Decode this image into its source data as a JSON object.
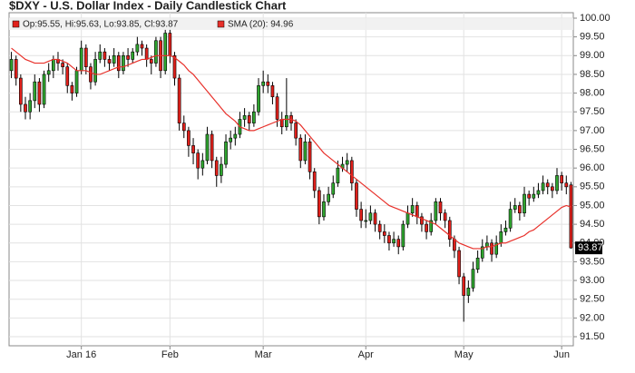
{
  "chart_data": {
    "type": "candlestick",
    "title": "$DXY - U.S. Dollar Index - Daily Candlestick Chart",
    "info": "Op:95.55, Hi:95.63, Lo:93.85, Cl:93.87",
    "categories": [
      null,
      null,
      null,
      null,
      null,
      null,
      null,
      null,
      null,
      null,
      null,
      null,
      null,
      null,
      null,
      "Jan 16",
      null,
      null,
      null,
      null,
      null,
      null,
      null,
      null,
      null,
      null,
      null,
      null,
      null,
      null,
      null,
      null,
      null,
      null,
      "Feb",
      null,
      null,
      null,
      null,
      null,
      null,
      null,
      null,
      null,
      null,
      null,
      null,
      null,
      null,
      null,
      null,
      null,
      null,
      null,
      "Mar",
      null,
      null,
      null,
      null,
      null,
      null,
      null,
      null,
      null,
      null,
      null,
      null,
      null,
      null,
      null,
      null,
      null,
      null,
      null,
      null,
      null,
      "Apr",
      null,
      null,
      null,
      null,
      null,
      null,
      null,
      null,
      null,
      null,
      null,
      null,
      null,
      null,
      null,
      null,
      null,
      null,
      null,
      null,
      "May",
      null,
      null,
      null,
      null,
      null,
      null,
      null,
      null,
      null,
      null,
      null,
      null,
      null,
      null,
      null,
      null,
      null,
      null,
      null,
      null,
      "Jun",
      null,
      null
    ],
    "open": [
      98.6,
      98.9,
      98.4,
      97.7,
      97.5,
      97.8,
      98.3,
      97.7,
      98.5,
      98.6,
      98.9,
      98.8,
      98.7,
      98.2,
      98.0,
      98.6,
      99.2,
      98.7,
      98.3,
      98.9,
      99.1,
      98.9,
      98.8,
      99.0,
      98.6,
      99.0,
      98.9,
      99.1,
      99.3,
      99.2,
      98.9,
      98.8,
      99.4,
      98.6,
      99.6,
      99.0,
      98.4,
      97.2,
      97.0,
      96.6,
      96.4,
      96.0,
      96.2,
      96.9,
      96.2,
      95.8,
      96.1,
      96.7,
      96.8,
      96.9,
      97.3,
      97.4,
      97.2,
      97.5,
      98.2,
      98.3,
      98.2,
      97.9,
      97.3,
      97.1,
      97.4,
      97.2,
      96.8,
      96.2,
      96.7,
      95.9,
      95.4,
      94.7,
      95.1,
      95.3,
      95.6,
      96.0,
      96.1,
      96.2,
      95.6,
      94.9,
      94.6,
      94.6,
      94.8,
      94.5,
      94.3,
      94.2,
      94.0,
      94.1,
      93.9,
      94.5,
      94.8,
      95.0,
      94.7,
      94.5,
      94.3,
      94.6,
      95.1,
      94.8,
      94.6,
      94.1,
      93.8,
      93.1,
      92.6,
      92.8,
      93.3,
      93.6,
      93.9,
      94.0,
      93.7,
      94.0,
      94.3,
      94.4,
      94.9,
      95.0,
      94.8,
      95.3,
      95.2,
      95.3,
      95.4,
      95.6,
      95.5,
      95.4,
      95.8,
      95.6,
      95.55
    ],
    "high": [
      99.1,
      99.0,
      98.5,
      97.9,
      98.0,
      98.5,
      98.4,
      98.6,
      98.8,
      99.0,
      99.1,
      98.9,
      98.8,
      98.3,
      98.7,
      99.4,
      99.3,
      98.8,
      99.1,
      99.3,
      99.2,
      99.0,
      99.2,
      99.1,
      99.1,
      99.2,
      99.2,
      99.5,
      99.4,
      99.3,
      99.0,
      99.5,
      99.5,
      99.7,
      99.7,
      99.1,
      98.5,
      97.4,
      97.1,
      96.8,
      96.5,
      96.4,
      97.1,
      97.0,
      96.3,
      96.3,
      96.9,
      97.0,
      97.1,
      97.5,
      97.6,
      97.5,
      97.7,
      98.4,
      98.6,
      98.5,
      98.3,
      98.0,
      97.5,
      98.4,
      97.5,
      97.3,
      96.9,
      96.9,
      96.8,
      96.0,
      95.5,
      95.3,
      95.5,
      95.8,
      96.2,
      96.3,
      96.4,
      96.3,
      95.7,
      95.1,
      94.9,
      95.0,
      94.9,
      94.6,
      94.5,
      94.3,
      94.3,
      94.2,
      94.6,
      95.0,
      95.2,
      95.1,
      94.8,
      94.6,
      94.8,
      95.2,
      95.2,
      94.9,
      94.7,
      94.2,
      93.9,
      93.2,
      93.0,
      93.5,
      93.8,
      94.1,
      94.2,
      94.1,
      94.2,
      94.5,
      94.6,
      95.1,
      95.2,
      95.1,
      95.5,
      95.4,
      95.5,
      95.6,
      95.8,
      95.7,
      95.6,
      96.0,
      95.9,
      95.8,
      95.63
    ],
    "low": [
      98.4,
      98.2,
      97.5,
      97.3,
      97.3,
      97.6,
      97.5,
      97.6,
      98.3,
      98.4,
      98.6,
      98.5,
      98.0,
      97.8,
      97.9,
      98.5,
      98.5,
      98.1,
      98.2,
      98.8,
      98.7,
      98.6,
      98.7,
      98.4,
      98.5,
      98.7,
      98.8,
      99.0,
      99.0,
      98.7,
      98.5,
      98.7,
      98.4,
      98.5,
      98.8,
      98.2,
      97.0,
      96.8,
      96.3,
      96.1,
      95.7,
      95.8,
      96.1,
      96.0,
      95.5,
      95.6,
      96.0,
      96.5,
      96.6,
      96.8,
      97.1,
      97.0,
      97.1,
      97.4,
      98.0,
      98.0,
      97.7,
      97.1,
      96.9,
      97.0,
      97.0,
      96.6,
      96.0,
      96.1,
      95.7,
      95.2,
      94.5,
      94.6,
      95.0,
      95.2,
      95.5,
      95.9,
      95.9,
      95.4,
      94.7,
      94.4,
      94.4,
      94.5,
      94.3,
      94.1,
      94.0,
      93.8,
      93.9,
      93.7,
      93.8,
      94.4,
      94.7,
      94.5,
      94.3,
      94.1,
      94.2,
      94.5,
      94.6,
      94.4,
      93.9,
      93.6,
      92.9,
      91.9,
      92.4,
      92.7,
      93.2,
      93.5,
      93.8,
      93.5,
      93.6,
      93.9,
      94.2,
      94.3,
      94.8,
      94.6,
      94.7,
      95.0,
      95.1,
      95.2,
      95.3,
      95.3,
      95.2,
      95.3,
      95.4,
      95.3,
      93.85
    ],
    "close": [
      98.9,
      98.4,
      97.7,
      97.5,
      97.8,
      98.3,
      97.7,
      98.5,
      98.6,
      98.9,
      98.8,
      98.7,
      98.2,
      98.0,
      98.6,
      99.2,
      98.7,
      98.3,
      98.9,
      99.1,
      98.9,
      98.8,
      99.0,
      98.6,
      99.0,
      98.9,
      99.1,
      99.3,
      99.2,
      98.9,
      98.8,
      99.4,
      98.6,
      99.6,
      99.0,
      98.4,
      97.2,
      97.0,
      96.6,
      96.4,
      96.0,
      96.2,
      96.9,
      96.2,
      95.8,
      96.1,
      96.7,
      96.8,
      96.9,
      97.3,
      97.4,
      97.2,
      97.5,
      98.2,
      98.3,
      98.2,
      97.9,
      97.3,
      97.1,
      97.4,
      97.2,
      96.8,
      96.2,
      96.7,
      95.9,
      95.4,
      94.7,
      95.1,
      95.3,
      95.6,
      96.0,
      96.1,
      96.2,
      95.6,
      94.9,
      94.6,
      94.6,
      94.8,
      94.5,
      94.3,
      94.2,
      94.0,
      94.1,
      93.9,
      94.5,
      94.8,
      95.0,
      94.7,
      94.5,
      94.3,
      94.6,
      95.1,
      94.8,
      94.6,
      94.1,
      93.8,
      93.1,
      92.6,
      92.8,
      93.3,
      93.6,
      93.9,
      94.0,
      93.7,
      94.0,
      94.3,
      94.4,
      94.9,
      95.0,
      94.8,
      95.3,
      95.2,
      95.3,
      95.4,
      95.6,
      95.5,
      95.4,
      95.8,
      95.6,
      95.5,
      93.87
    ],
    "sma": {
      "name": "SMA (20): 94.96",
      "color": "#e8302a",
      "values": [
        99.2,
        99.1,
        99.0,
        98.9,
        98.85,
        98.8,
        98.8,
        98.8,
        98.85,
        98.9,
        98.9,
        98.85,
        98.8,
        98.7,
        98.6,
        98.6,
        98.6,
        98.55,
        98.5,
        98.5,
        98.55,
        98.6,
        98.65,
        98.7,
        98.7,
        98.75,
        98.8,
        98.85,
        98.9,
        98.9,
        98.95,
        99.0,
        99.0,
        99.0,
        99.0,
        98.95,
        98.85,
        98.75,
        98.6,
        98.5,
        98.35,
        98.2,
        98.05,
        97.9,
        97.75,
        97.6,
        97.45,
        97.35,
        97.25,
        97.1,
        97.05,
        97.0,
        97.0,
        97.05,
        97.1,
        97.15,
        97.2,
        97.25,
        97.3,
        97.3,
        97.3,
        97.25,
        97.15,
        97.0,
        96.85,
        96.7,
        96.55,
        96.4,
        96.3,
        96.2,
        96.1,
        96.0,
        95.9,
        95.8,
        95.7,
        95.6,
        95.5,
        95.4,
        95.3,
        95.2,
        95.1,
        95.0,
        94.95,
        94.9,
        94.85,
        94.8,
        94.75,
        94.7,
        94.65,
        94.6,
        94.55,
        94.5,
        94.4,
        94.3,
        94.2,
        94.1,
        94.0,
        93.95,
        93.9,
        93.85,
        93.85,
        93.85,
        93.9,
        93.9,
        93.95,
        94.0,
        94.0,
        94.05,
        94.1,
        94.15,
        94.2,
        94.3,
        94.35,
        94.45,
        94.55,
        94.65,
        94.75,
        94.85,
        94.95,
        95.0,
        94.96
      ]
    },
    "up_color": "#2fa52f",
    "down_color": "#e0201b",
    "ylim": [
      91.5,
      100
    ],
    "yticks": [
      {
        "value": 91.5,
        "label": "91.50"
      },
      {
        "value": 92,
        "label": "92.00"
      },
      {
        "value": 92.5,
        "label": "92.50"
      },
      {
        "value": 93,
        "label": "93.00"
      },
      {
        "value": 93.5,
        "label": "93.50"
      },
      {
        "value": 94,
        "label": "94.00"
      },
      {
        "value": 94.5,
        "label": "94.50"
      },
      {
        "value": 95,
        "label": "95.00"
      },
      {
        "value": 95.5,
        "label": "95.50"
      },
      {
        "value": 96,
        "label": "96.00"
      },
      {
        "value": 96.5,
        "label": "96.50"
      },
      {
        "value": 97,
        "label": "97.00"
      },
      {
        "value": 97.5,
        "label": "97.50"
      },
      {
        "value": 98,
        "label": "98.00"
      },
      {
        "value": 98.5,
        "label": "98.50"
      },
      {
        "value": 99,
        "label": "99.00"
      },
      {
        "value": 99.5,
        "label": "99.50"
      },
      {
        "value": 100,
        "label": "100.00"
      }
    ],
    "grid": true
  }
}
